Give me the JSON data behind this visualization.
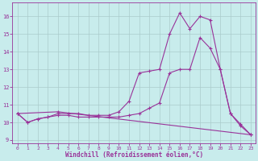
{
  "xlabel": "Windchill (Refroidissement éolien,°C)",
  "bg_color": "#c8ecec",
  "line_color": "#993399",
  "grid_color": "#aacccc",
  "xlim": [
    -0.5,
    23.5
  ],
  "ylim": [
    8.8,
    16.8
  ],
  "yticks": [
    9,
    10,
    11,
    12,
    13,
    14,
    15,
    16
  ],
  "xticks": [
    0,
    1,
    2,
    3,
    4,
    5,
    6,
    7,
    8,
    9,
    10,
    11,
    12,
    13,
    14,
    15,
    16,
    17,
    18,
    19,
    20,
    21,
    22,
    23
  ],
  "line1_x": [
    0,
    1,
    2,
    3,
    4,
    5,
    6,
    7,
    8,
    9,
    10,
    11,
    12,
    13,
    14,
    15,
    16,
    17,
    18,
    19,
    20,
    21,
    22,
    23
  ],
  "line1_y": [
    10.5,
    10.0,
    10.2,
    10.3,
    10.4,
    10.4,
    10.3,
    10.3,
    10.3,
    10.3,
    10.3,
    10.4,
    10.5,
    10.8,
    11.1,
    12.8,
    13.0,
    13.0,
    14.8,
    14.2,
    13.0,
    10.5,
    9.8,
    9.3
  ],
  "line2_x": [
    0,
    1,
    2,
    3,
    4,
    5,
    6,
    7,
    8,
    9,
    10,
    11,
    12,
    13,
    14,
    15,
    16,
    17,
    18,
    19,
    20,
    21,
    22,
    23
  ],
  "line2_y": [
    10.5,
    10.0,
    10.2,
    10.3,
    10.5,
    10.5,
    10.5,
    10.4,
    10.4,
    10.4,
    10.6,
    11.2,
    12.8,
    12.9,
    13.0,
    15.0,
    16.2,
    15.3,
    16.0,
    15.8,
    13.0,
    10.5,
    9.9,
    9.3
  ],
  "line3_x": [
    0,
    4,
    23
  ],
  "line3_y": [
    10.5,
    10.6,
    9.3
  ]
}
